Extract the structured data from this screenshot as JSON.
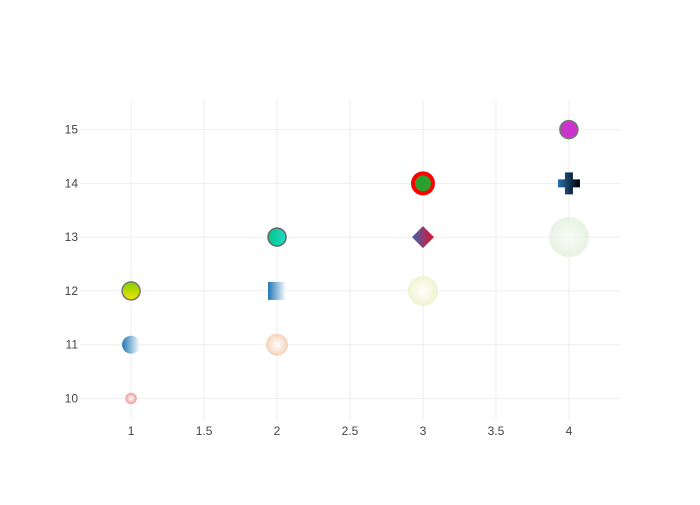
{
  "chart_data": {
    "type": "scatter",
    "title": "",
    "xlabel": "",
    "ylabel": "",
    "xlim": [
      0.65,
      4.35
    ],
    "ylim": [
      9.6,
      15.55
    ],
    "x_ticks": [
      1,
      1.5,
      2,
      2.5,
      3,
      3.5,
      4
    ],
    "x_tick_labels": [
      "1",
      "1.5",
      "2",
      "2.5",
      "3",
      "3.5",
      "4"
    ],
    "y_ticks": [
      10,
      11,
      12,
      13,
      14,
      15
    ],
    "y_tick_labels": [
      "10",
      "11",
      "12",
      "13",
      "14",
      "15"
    ],
    "grid": true,
    "legend": "none",
    "points": [
      {
        "x": 1,
        "y": 10,
        "symbol": "circle",
        "size": "small",
        "fill": "radial",
        "color_a": "#ffffff",
        "color_b": "#f0a0a0",
        "stroke": "#f0a0a0",
        "opacity": 0.9
      },
      {
        "x": 1,
        "y": 11,
        "symbol": "circle",
        "size": "medium",
        "fill": "horizontal",
        "color_a": "#1f77b4",
        "color_b": "#ffffff",
        "stroke": "none",
        "opacity": 1
      },
      {
        "x": 1,
        "y": 12,
        "symbol": "circle",
        "size": "medium",
        "fill": "vertical",
        "color_a": "#7fd000",
        "color_b": "#f2e400",
        "stroke": "#777777",
        "opacity": 1
      },
      {
        "x": 2,
        "y": 11,
        "symbol": "circle",
        "size": "large",
        "fill": "radial",
        "color_a": "#ffffff",
        "color_b": "#f2c8a8",
        "stroke": "none",
        "opacity": 0.8
      },
      {
        "x": 2,
        "y": 12,
        "symbol": "square",
        "size": "medium",
        "fill": "horizontal",
        "color_a": "#1f77b4",
        "color_b": "#ffffff",
        "stroke": "none",
        "opacity": 1
      },
      {
        "x": 2,
        "y": 13,
        "symbol": "circle",
        "size": "medium",
        "fill": "horizontal",
        "color_a": "#00c78a",
        "color_b": "#22d8c8",
        "stroke": "#666666",
        "opacity": 1
      },
      {
        "x": 3,
        "y": 12,
        "symbol": "circle",
        "size": "xlarge",
        "fill": "radial",
        "color_a": "#ffffff",
        "color_b": "#eef2c8",
        "stroke": "none",
        "opacity": 0.9
      },
      {
        "x": 3,
        "y": 13,
        "symbol": "diamond",
        "size": "medium",
        "fill": "horizontal",
        "color_a": "#3a67b0",
        "color_b": "#e0112b",
        "stroke": "none",
        "opacity": 1
      },
      {
        "x": 3,
        "y": 14,
        "symbol": "circle",
        "size": "medium",
        "fill": "solid",
        "color_a": "#2ca02c",
        "color_b": "#2ca02c",
        "stroke": "#ff0000",
        "opacity": 1
      },
      {
        "x": 4,
        "y": 13,
        "symbol": "circle",
        "size": "xxlarge",
        "fill": "radial",
        "color_a": "#f6fbf2",
        "color_b": "#e2f0dc",
        "stroke": "none",
        "opacity": 0.8
      },
      {
        "x": 4,
        "y": 14,
        "symbol": "cross",
        "size": "medium",
        "fill": "horizontal",
        "color_a": "#2a6fae",
        "color_b": "#000000",
        "stroke": "none",
        "opacity": 1
      },
      {
        "x": 4,
        "y": 15,
        "symbol": "circle",
        "size": "medium",
        "fill": "solid",
        "color_a": "#cc33cc",
        "color_b": "#cc33cc",
        "stroke": "#707a70",
        "opacity": 1
      }
    ]
  }
}
